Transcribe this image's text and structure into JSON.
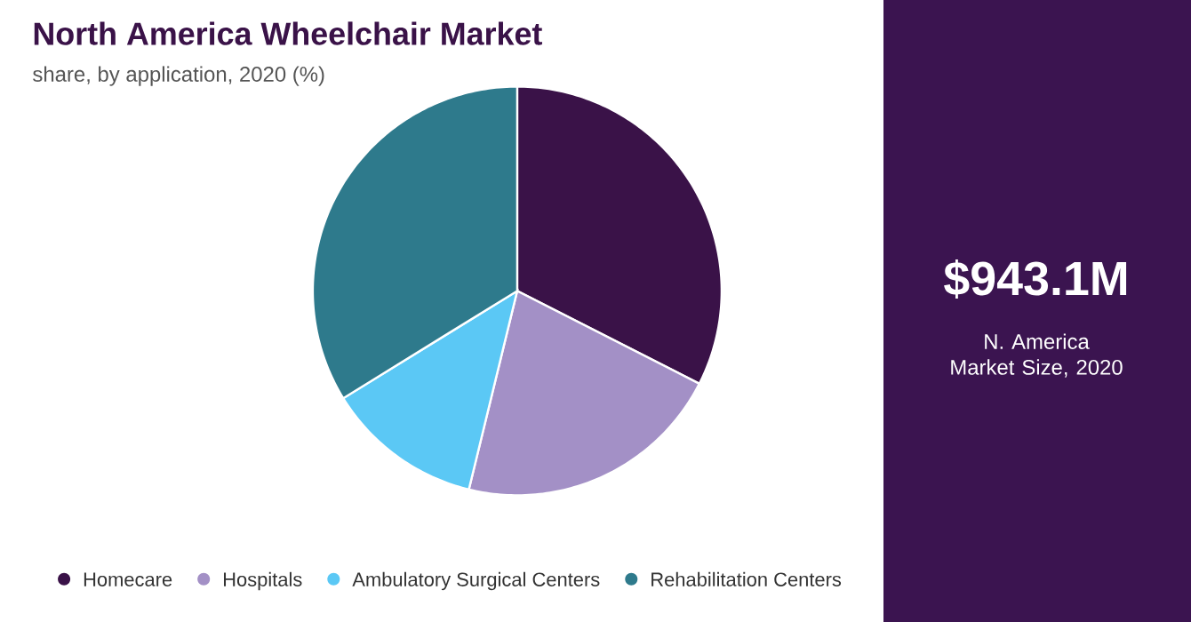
{
  "chart_data": {
    "type": "pie",
    "title": "North America Wheelchair Market",
    "subtitle": "share, by application, 2020 (%)",
    "categories": [
      "Homecare",
      "Hospitals",
      "Ambulatory Surgical Centers",
      "Rehabilitation Centers"
    ],
    "values": [
      32.5,
      21.3,
      12.4,
      33.8
    ],
    "colors": [
      "#3a1248",
      "#a390c6",
      "#5bc8f5",
      "#2e7a8c"
    ],
    "legend": "bottom",
    "annotations": [
      "$943.1M",
      "N. America Market Size, 2020"
    ]
  }
}
